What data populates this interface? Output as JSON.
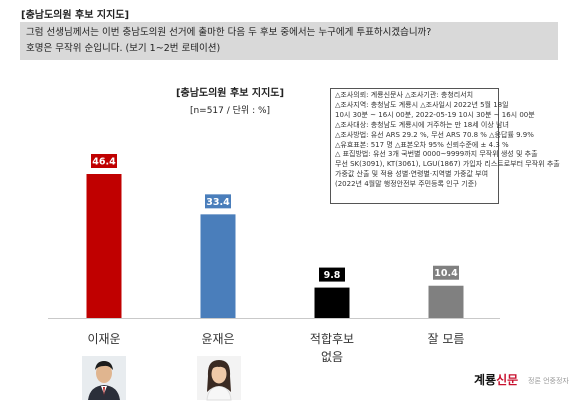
{
  "header": {
    "section_title": "[충남도의원 후보 지지도]",
    "question_line1": "그럼 선생님께서는 이번 충남도의원 선거에 출마한 다음 두 후보 중에서는 누구에게 투표하시겠습니까?",
    "question_line2": "호명은 무작위 순입니다. (보기 1~2번 로테이션)"
  },
  "chart_data": {
    "type": "bar",
    "title": "[충남도의원 후보 지지도]",
    "subtitle": "[n=517 / 단위 : %]",
    "categories": [
      "이재운",
      "윤재은",
      "적합후보 없음",
      "잘 모름"
    ],
    "category_lines": [
      [
        "이재운"
      ],
      [
        "윤재은"
      ],
      [
        "적합후보",
        "없음"
      ],
      [
        "잘 모름"
      ]
    ],
    "values": [
      46.4,
      33.4,
      9.8,
      10.4
    ],
    "colors": [
      "#c00000",
      "#4a7ebb",
      "#000000",
      "#808080"
    ],
    "ylim": [
      0,
      50
    ],
    "grid": false
  },
  "info_box": {
    "lines": [
      "△조사의뢰: 계룡신문사 △조사기관: 충청리서치",
      "△조사지역: 충청남도 계룡시 △조사일시 2022년 5월 18일",
      "10시 30분 ~ 16시 00분, 2022-05-19 10시 30분 ~ 16시 00분",
      "△조사대상: 충청남도 계룡시에 거주하는 만 18세 이상 남녀",
      "△조사방법: 유선 ARS 29.2 %, 무선 ARS 70.8 % △응답률 9.9%",
      "△유효표본: 517 명 △표본오차 95% 신뢰수준에 ± 4.3 %",
      "△ 표집방법: 유선 3개 국번별 0000~9999까지 무작위 생성 및 추출",
      "무선 SK(3091), KT(3061), LGU(1867) 가입자 리스트로부터 무작위 추출",
      "가중값 산출 및 적용 성별·연령별·지역별 가중값 부여",
      "(2022년 4월말 행정안전부 주민등록 인구 기준)"
    ]
  },
  "branding": {
    "logo_main": "계룡",
    "logo_accent": "신문",
    "logo_tail": "정론 언중정자"
  },
  "candidates": [
    {
      "name": "이재운",
      "photo": "male-candidate-photo"
    },
    {
      "name": "윤재은",
      "photo": "female-candidate-photo"
    }
  ]
}
